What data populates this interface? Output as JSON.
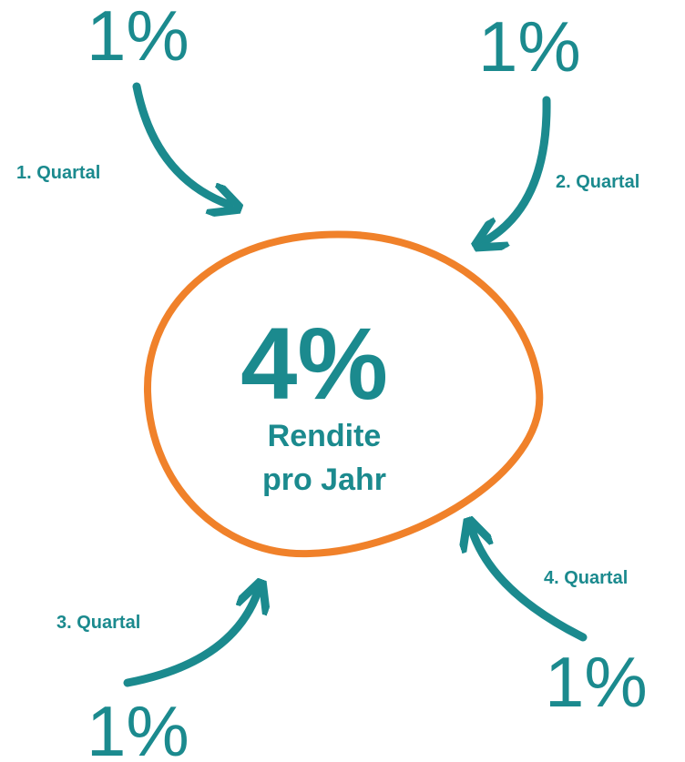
{
  "center": {
    "value": "4%",
    "line1": "Rendite",
    "line2": "pro Jahr"
  },
  "quarters": [
    {
      "value": "1%",
      "label": "1. Quartal"
    },
    {
      "value": "1%",
      "label": "2. Quartal"
    },
    {
      "value": "1%",
      "label": "3. Quartal"
    },
    {
      "value": "1%",
      "label": "4. Quartal"
    }
  ]
}
